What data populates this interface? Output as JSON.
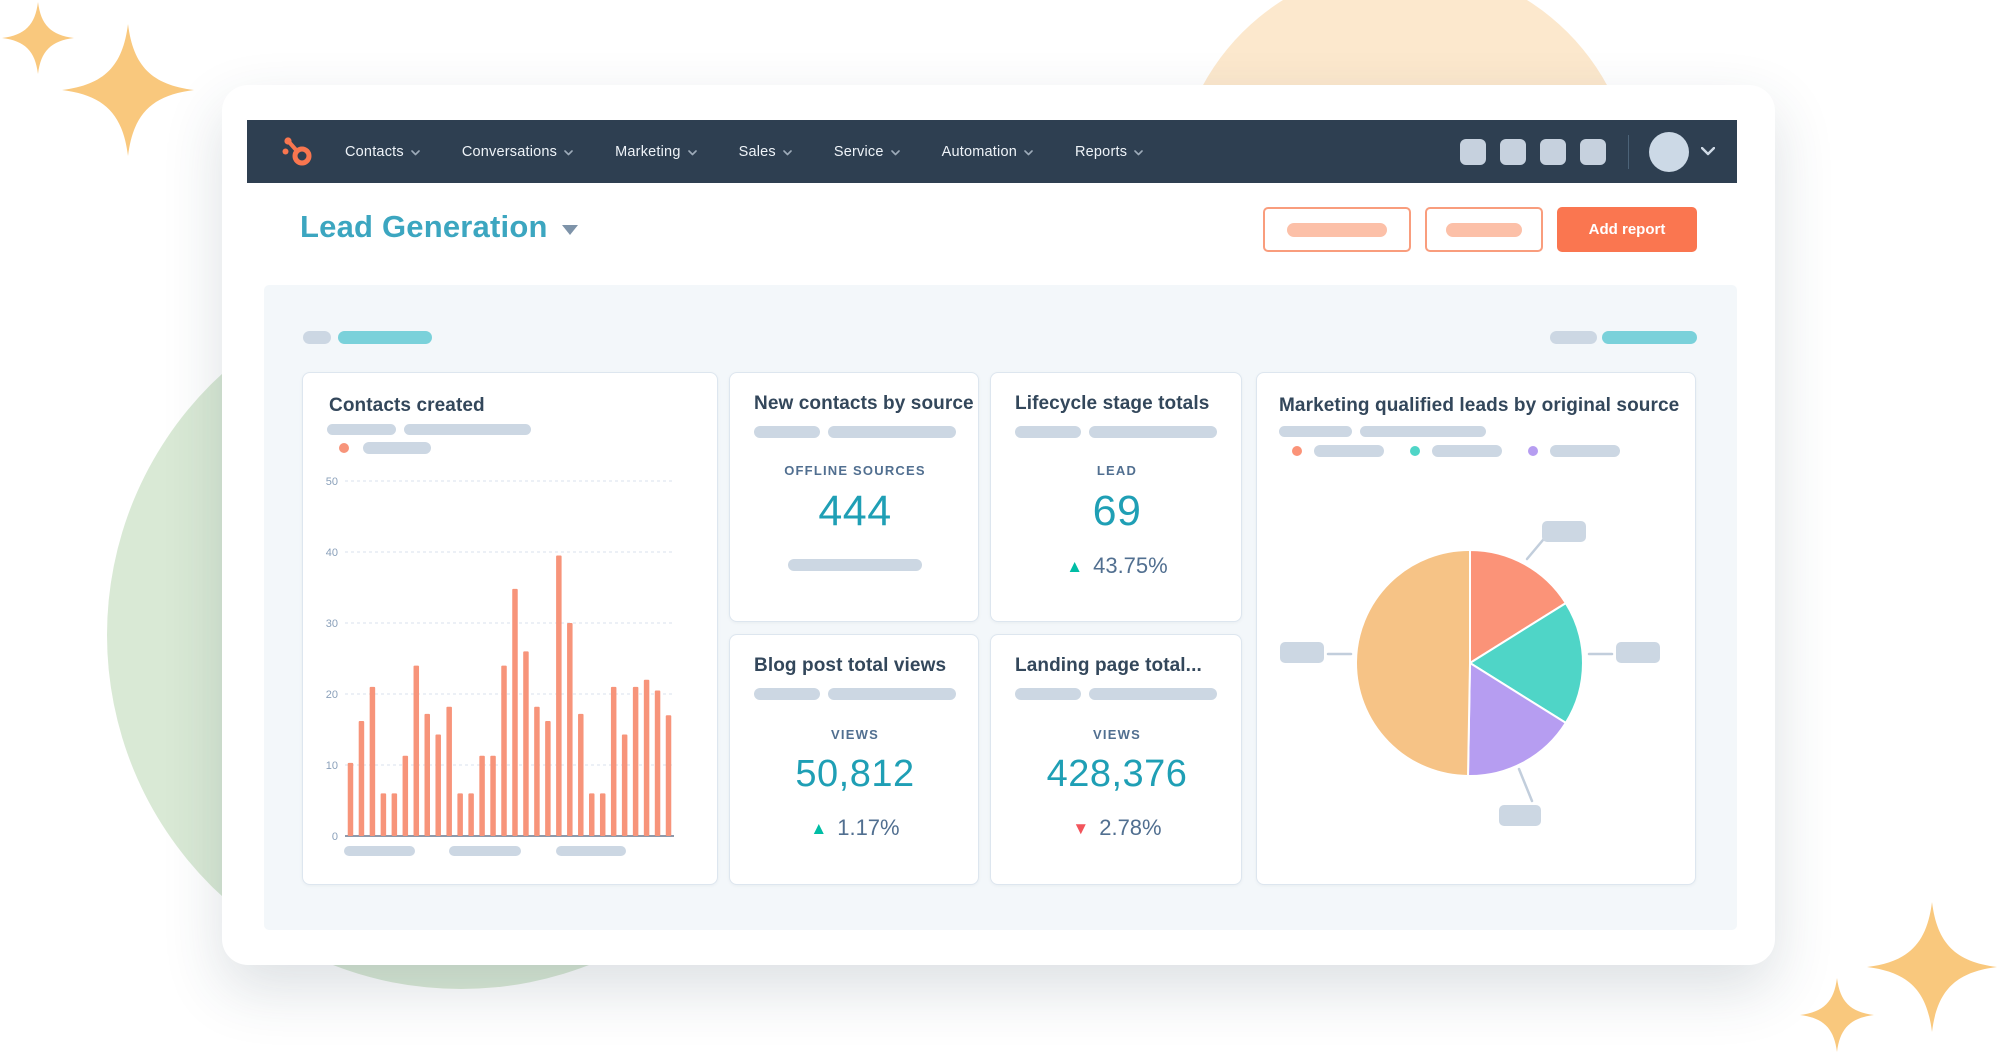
{
  "app": {
    "title": "Lead Generation dashboard"
  },
  "nav": {
    "brand": "HubSpot",
    "items": [
      {
        "label": "Contacts"
      },
      {
        "label": "Conversations"
      },
      {
        "label": "Marketing"
      },
      {
        "label": "Sales"
      },
      {
        "label": "Service"
      },
      {
        "label": "Automation"
      },
      {
        "label": "Reports"
      }
    ],
    "placeholder_icon_count": 4
  },
  "header": {
    "title": "Lead Generation",
    "add_report_label": "Add report"
  },
  "cards": {
    "contacts_created": {
      "title": "Contacts created",
      "legend_dot_color": "#f7947a"
    },
    "new_contacts_by_source": {
      "title": "New contacts by source",
      "metric_label": "OFFLINE SOURCES",
      "value": "444"
    },
    "lifecycle_stage_totals": {
      "title": "Lifecycle stage totals",
      "metric_label": "LEAD",
      "value": "69",
      "delta": "43.75%",
      "delta_direction": "up"
    },
    "blog_post_total_views": {
      "title": "Blog post total views",
      "metric_label": "VIEWS",
      "value": "50,812",
      "delta": "1.17%",
      "delta_direction": "up"
    },
    "landing_page_total_views": {
      "title": "Landing page total...",
      "metric_label": "VIEWS",
      "value": "428,376",
      "delta": "2.78%",
      "delta_direction": "down"
    },
    "mql_by_source": {
      "title": "Marketing qualified leads by original source"
    }
  },
  "chart_data": [
    {
      "type": "bar",
      "title": "Contacts created",
      "ylim": [
        0,
        50
      ],
      "yticks": [
        0,
        10,
        20,
        30,
        40,
        50
      ],
      "grid": true,
      "bar_color": "#f7947a",
      "x_labels": "placeholder-pills",
      "values": [
        10.3,
        16.2,
        21,
        6,
        6,
        11.3,
        24,
        17.2,
        14.3,
        18.2,
        6,
        6,
        11.3,
        11.3,
        24,
        34.8,
        26,
        18.2,
        16.2,
        39.5,
        30,
        17.2,
        6,
        6,
        21,
        14.3,
        21,
        22,
        20.5,
        17
      ]
    },
    {
      "type": "pie",
      "title": "Marketing qualified leads by original source",
      "legend": "placeholder-pills",
      "legend_dot_colors": [
        "#fb9378",
        "#4fd5c7",
        "#b69df1"
      ],
      "segments": [
        {
          "color": "#fb9378",
          "start_deg": 0,
          "end_deg": 58,
          "percent": 16.1,
          "callout": "top-right"
        },
        {
          "color": "#4fd5c7",
          "start_deg": 58,
          "end_deg": 122,
          "percent": 17.8,
          "callout": "right"
        },
        {
          "color": "#b69df1",
          "start_deg": 122,
          "end_deg": 181,
          "percent": 16.4,
          "callout": "bottom"
        },
        {
          "color": "#f6c386",
          "start_deg": 181,
          "end_deg": 360,
          "percent": 49.7,
          "callout": "left"
        }
      ]
    }
  ],
  "colors": {
    "navbar": "#2e3f51",
    "accent_orange": "#fa7650",
    "title_teal": "#3ca6c0",
    "metric_teal": "#1f9fb5",
    "delta_up": "#00bda5",
    "delta_down": "#f2545b",
    "panel_bg": "#f3f7fa",
    "pill_gray": "#ccd7e3",
    "pill_teal": "#7ad1da",
    "bar_salmon": "#f7947a",
    "pie_salmon": "#fb9378",
    "pie_teal": "#4fd5c7",
    "pie_purple": "#b69df1",
    "pie_tan": "#f6c386",
    "sparkle_gold": "#f9c87d",
    "bg_circle_green": "#d9e9d5",
    "bg_circle_peach": "#fce8cd"
  }
}
